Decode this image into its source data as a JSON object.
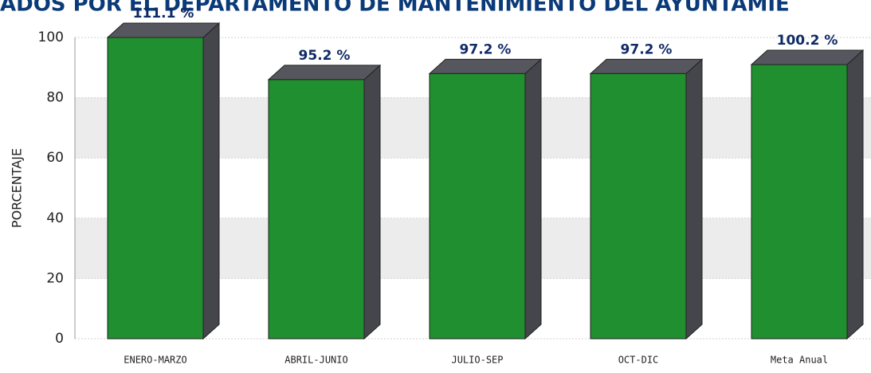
{
  "chart_data": {
    "type": "bar3d",
    "title": "ADOS POR EL DEPARTAMENTO DE MANTENIMIENTO DEL AYUNTAMIE",
    "y_label": "PORCENTAJE",
    "categories": [
      "ENERO-MARZO",
      "ABRIL-JUNIO",
      "JULIO-SEP",
      "OCT-DIC",
      "Meta Anual"
    ],
    "values": [
      100,
      86,
      88,
      88,
      91
    ],
    "annotations": [
      "111.1 %",
      "95.2 %",
      "97.2 %",
      "97.2 %",
      "100.2 %"
    ],
    "color": "#1f8f2f",
    "side_color": "#45454c",
    "ylim": [
      0,
      100
    ],
    "yticks": [
      0,
      20,
      40,
      60,
      80,
      100
    ],
    "grid": true
  }
}
